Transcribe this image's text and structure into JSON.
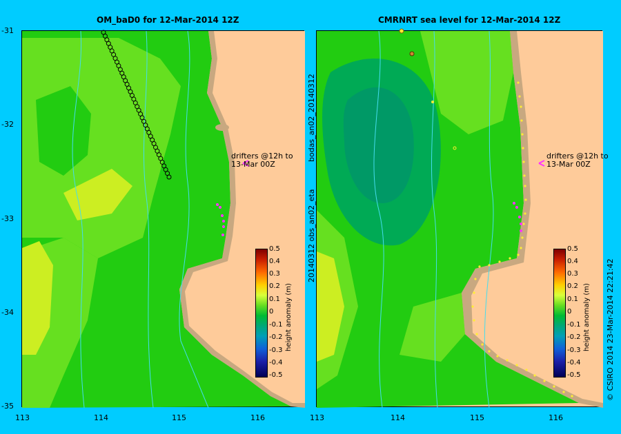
{
  "panels": [
    {
      "title": "OM_baD0 for 12-Mar-2014 12Z",
      "annotation_line1": "drifters @12h to",
      "annotation_line2": "13-Mar 00Z"
    },
    {
      "title": "CMRNRT sea level  for 12-Mar-2014 12Z",
      "annotation_line1": "drifters @12h to",
      "annotation_line2": "13-Mar 00Z"
    }
  ],
  "axes": {
    "y_ticks": [
      "-31",
      "-32",
      "-33",
      "-34",
      "-35"
    ],
    "x_ticks_left": [
      "113",
      "114",
      "115",
      "116"
    ],
    "x_ticks_right": [
      "113",
      "114",
      "115",
      "116"
    ]
  },
  "colorbar": {
    "title": "height anomaly (m)",
    "ticks": [
      "0.5",
      "0.4",
      "0.3",
      "0.2",
      "0.1",
      "0",
      "-0.1",
      "-0.2",
      "-0.3",
      "-0.4",
      "-0.5"
    ]
  },
  "side_labels": {
    "left_upper": "bodas_an02_20140312",
    "left_lower": "20140312 obs_an02_eta",
    "right": "© CSIRO 2014   23-Mar-2014 22:21:42"
  },
  "colors": {
    "background": "#00ccff",
    "land": "#fecb9a",
    "shelf": "#c8a880",
    "field_green": "#22cc11",
    "field_light": "#66e020",
    "field_yellow": "#ccee22",
    "field_teal": "#00aa55",
    "drifter": "#ff33ff"
  }
}
